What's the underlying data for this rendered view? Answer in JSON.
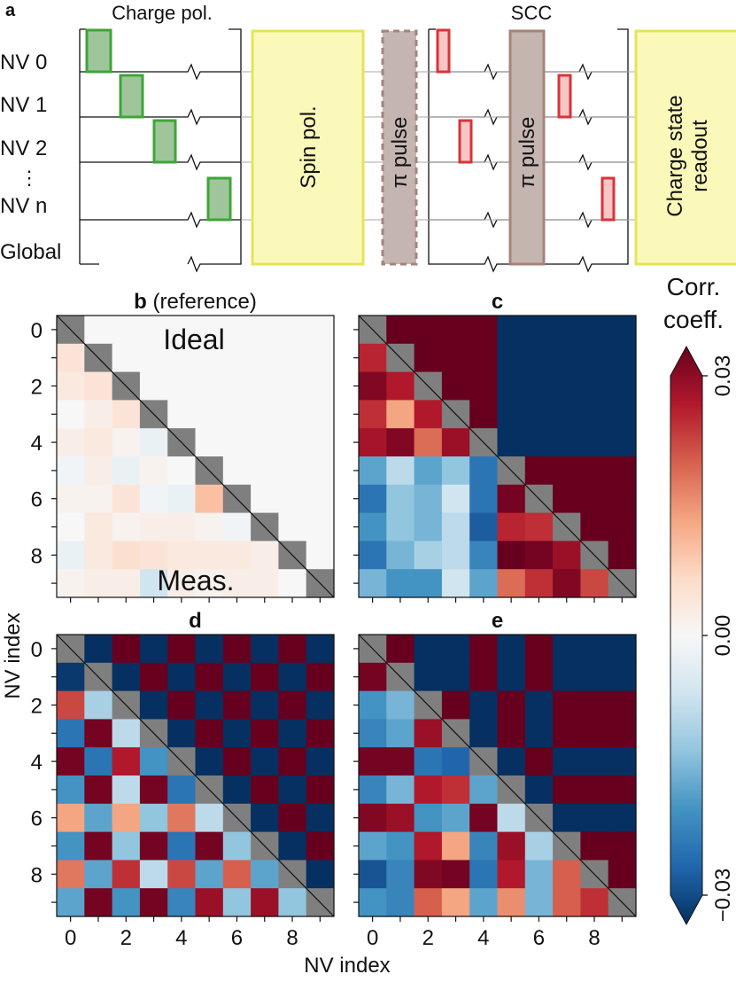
{
  "panel_a": {
    "label": "a",
    "section_charge": "Charge pol.",
    "section_scc": "SCC",
    "rows": [
      "NV 0",
      "NV 1",
      "NV 2",
      "NV n",
      "Global"
    ],
    "rows_ellipsis": "⋮",
    "spin_pol": "Spin pol.",
    "pi_pulse": "π pulse",
    "readout_line1": "Charge state",
    "readout_line2": "readout",
    "colors": {
      "charge_pulse_fill": "#9fc59b",
      "charge_pulse_stroke": "#3ea638",
      "scc_pulse_fill": "#f9c6c6",
      "scc_pulse_stroke": "#d8343b",
      "yellow_fill": "#fbf9b9",
      "yellow_stroke": "#e4e45a",
      "pi_fill": "#c5b5b0",
      "pi_stroke": "#a6837b"
    }
  },
  "colorbar": {
    "title_line1": "Corr.",
    "title_line2": "coeff.",
    "ticks": [
      "0.03",
      "0.00",
      "−0.03"
    ],
    "vmin": -0.03,
    "vmax": 0.03
  },
  "shared": {
    "ylabel": "NV index",
    "xlabel": "NV index",
    "tick_labels": [
      "0",
      "2",
      "4",
      "6",
      "8"
    ],
    "diag_color": "#7f7f7f"
  },
  "chart_data": [
    {
      "type": "heatmap",
      "panel": "b",
      "title_bold": "b",
      "title_rest": " (reference)",
      "annotation_upper": "Ideal",
      "annotation_lower": "Meas.",
      "size": 10,
      "values": [
        [
          0,
          0,
          0,
          0,
          0,
          0,
          0,
          0,
          0,
          0
        ],
        [
          0.004,
          0,
          0,
          0,
          0,
          0,
          0,
          0,
          0,
          0
        ],
        [
          0.003,
          0.004,
          0,
          0,
          0,
          0,
          0,
          0,
          0,
          0
        ],
        [
          0.0,
          0.002,
          0.004,
          0,
          0,
          0,
          0,
          0,
          0,
          0
        ],
        [
          0.002,
          0.003,
          0.001,
          -0.002,
          0,
          0,
          0,
          0,
          0,
          0
        ],
        [
          -0.001,
          0.002,
          -0.002,
          0.001,
          0.0,
          0,
          0,
          0,
          0,
          0
        ],
        [
          0.001,
          0.001,
          0.004,
          -0.001,
          -0.002,
          0.009,
          0,
          0,
          0,
          0
        ],
        [
          0.0,
          0.003,
          0.001,
          0.002,
          0.002,
          0.001,
          -0.001,
          0,
          0,
          0
        ],
        [
          -0.002,
          0.003,
          0.005,
          0.004,
          0.003,
          0.003,
          0.003,
          0.002,
          0,
          0
        ],
        [
          0.001,
          0.002,
          0.002,
          -0.006,
          0.002,
          0.001,
          0.002,
          0.002,
          0.0,
          0
        ]
      ]
    },
    {
      "type": "heatmap",
      "panel": "c",
      "title_bold": "c",
      "title_rest": "",
      "size": 10,
      "values": [
        [
          0,
          0.03,
          0.03,
          0.03,
          0.03,
          -0.03,
          -0.03,
          -0.03,
          -0.03,
          -0.03
        ],
        [
          0.023,
          0,
          0.03,
          0.03,
          0.03,
          -0.03,
          -0.03,
          -0.03,
          -0.03,
          -0.03
        ],
        [
          0.028,
          0.024,
          0,
          0.03,
          0.03,
          -0.03,
          -0.03,
          -0.03,
          -0.03,
          -0.03
        ],
        [
          0.022,
          0.012,
          0.024,
          0,
          0.03,
          -0.03,
          -0.03,
          -0.03,
          -0.03,
          -0.03
        ],
        [
          0.025,
          0.028,
          0.017,
          0.026,
          0,
          -0.03,
          -0.03,
          -0.03,
          -0.03,
          -0.03
        ],
        [
          -0.016,
          -0.008,
          -0.016,
          -0.012,
          -0.022,
          0,
          0.03,
          0.03,
          0.03,
          0.03
        ],
        [
          -0.022,
          -0.012,
          -0.014,
          -0.006,
          -0.022,
          0.029,
          0,
          0.03,
          0.03,
          0.03
        ],
        [
          -0.018,
          -0.012,
          -0.014,
          -0.008,
          -0.025,
          0.023,
          0.022,
          0,
          0.03,
          0.03
        ],
        [
          -0.022,
          -0.014,
          -0.01,
          -0.008,
          -0.02,
          0.03,
          0.029,
          0.026,
          0,
          0.03
        ],
        [
          -0.014,
          -0.018,
          -0.018,
          -0.006,
          -0.016,
          0.017,
          0.022,
          0.028,
          0.02,
          0
        ]
      ]
    },
    {
      "type": "heatmap",
      "panel": "d",
      "title_bold": "d",
      "title_rest": "",
      "size": 10,
      "values": [
        [
          0,
          -0.03,
          0.03,
          -0.03,
          0.03,
          -0.03,
          0.03,
          -0.03,
          0.03,
          -0.03
        ],
        [
          -0.029,
          0,
          -0.03,
          0.03,
          -0.03,
          0.03,
          -0.03,
          0.03,
          -0.03,
          0.03
        ],
        [
          0.02,
          -0.01,
          0,
          -0.03,
          0.03,
          -0.03,
          0.03,
          -0.03,
          0.03,
          -0.03
        ],
        [
          -0.022,
          0.029,
          -0.008,
          0,
          -0.03,
          0.03,
          -0.03,
          0.03,
          -0.03,
          0.03
        ],
        [
          0.029,
          -0.022,
          0.024,
          -0.018,
          0,
          -0.03,
          0.03,
          -0.03,
          0.03,
          -0.03
        ],
        [
          -0.018,
          0.029,
          -0.008,
          0.029,
          -0.022,
          0,
          -0.03,
          0.03,
          -0.03,
          0.03
        ],
        [
          0.012,
          -0.016,
          0.012,
          -0.012,
          0.016,
          -0.008,
          0,
          -0.03,
          0.03,
          -0.03
        ],
        [
          -0.018,
          0.029,
          -0.012,
          0.029,
          -0.022,
          0.029,
          -0.012,
          0,
          -0.03,
          0.03
        ],
        [
          0.016,
          -0.016,
          0.022,
          -0.008,
          0.02,
          -0.016,
          0.018,
          -0.016,
          0,
          -0.03
        ],
        [
          -0.016,
          0.029,
          -0.018,
          0.029,
          -0.02,
          0.026,
          -0.012,
          0.026,
          -0.012,
          0
        ]
      ]
    },
    {
      "type": "heatmap",
      "panel": "e",
      "title_bold": "e",
      "title_rest": "",
      "size": 10,
      "values": [
        [
          0,
          0.03,
          -0.03,
          -0.03,
          0.03,
          -0.03,
          0.03,
          -0.03,
          -0.03,
          -0.03
        ],
        [
          0.029,
          0,
          -0.03,
          -0.03,
          0.03,
          -0.03,
          0.03,
          -0.03,
          -0.03,
          -0.03
        ],
        [
          -0.018,
          -0.014,
          0,
          0.03,
          -0.03,
          0.03,
          -0.03,
          0.03,
          0.03,
          0.03
        ],
        [
          -0.02,
          -0.016,
          0.026,
          0,
          -0.03,
          0.03,
          -0.03,
          0.03,
          0.03,
          0.03
        ],
        [
          0.029,
          0.029,
          -0.022,
          -0.024,
          0,
          -0.03,
          0.03,
          -0.03,
          -0.03,
          -0.03
        ],
        [
          -0.02,
          -0.014,
          0.024,
          0.022,
          -0.016,
          0,
          -0.03,
          0.03,
          0.03,
          0.03
        ],
        [
          0.028,
          0.026,
          -0.018,
          -0.016,
          0.029,
          -0.008,
          0,
          -0.03,
          -0.03,
          -0.03
        ],
        [
          -0.016,
          -0.018,
          0.024,
          0.012,
          -0.02,
          0.026,
          -0.01,
          0,
          0.03,
          0.03
        ],
        [
          -0.026,
          -0.02,
          0.028,
          0.029,
          -0.022,
          0.024,
          -0.014,
          0.018,
          0,
          0.03
        ],
        [
          -0.018,
          -0.02,
          0.018,
          0.012,
          -0.016,
          0.014,
          -0.014,
          0.018,
          0.022,
          0
        ]
      ]
    }
  ]
}
